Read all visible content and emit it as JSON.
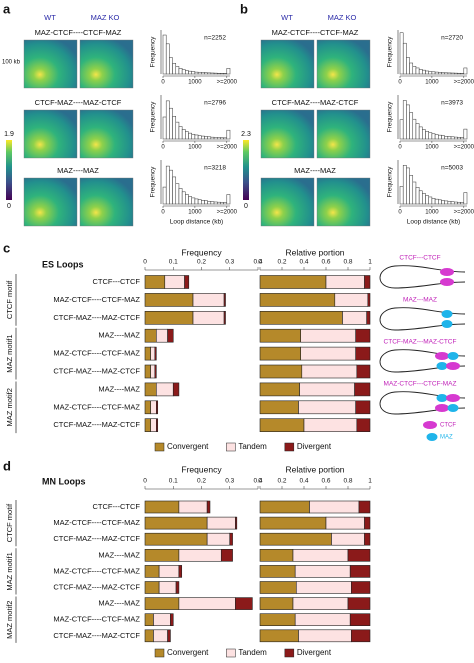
{
  "figure": {
    "panel_labels": [
      "a",
      "b",
      "c",
      "d"
    ],
    "hic": [
      {
        "wt": "WT",
        "ko": "MAZ KO",
        "scale": "100 kb",
        "colorbar": [
          1.9,
          0
        ],
        "rows": [
          "MAZ-CTCF----CTCF-MAZ",
          "CTCF-MAZ----MAZ-CTCF",
          "MAZ----MAZ"
        ]
      },
      {
        "wt": "WT",
        "ko": "MAZ KO",
        "colorbar": [
          2.3,
          0
        ],
        "rows": [
          "MAZ-CTCF----CTCF-MAZ",
          "CTCF-MAZ----MAZ-CTCF",
          "MAZ----MAZ"
        ]
      }
    ],
    "loops": [
      "ES Loops",
      "MN Loops"
    ],
    "motif_groups": [
      "CTCF motif",
      "MAZ motif1",
      "MAZ motif2"
    ],
    "diagrams": [
      "CTCF---CTCF",
      "MAZ---MAZ",
      "CTCF-MAZ---MAZ-CTCF",
      "MAZ-CTCF---CTCF-MAZ"
    ],
    "diagram_legend": [
      "CTCF",
      "MAZ"
    ]
  },
  "chart_data": [
    {
      "type": "histogram",
      "annotation": "n=2252",
      "ylabel": "Frequency",
      "bins": [
        0,
        100,
        200,
        300,
        400,
        500,
        600,
        700,
        800,
        900,
        1000,
        1100,
        1200,
        1300,
        1400,
        1500,
        1600,
        1700,
        1800,
        1900,
        2000,
        2100
      ],
      "counts": [
        620,
        480,
        260,
        170,
        120,
        90,
        70,
        55,
        45,
        40,
        30,
        28,
        25,
        20,
        18,
        16,
        14,
        12,
        10,
        10,
        90
      ],
      "ylim": [
        0,
        700
      ],
      "xlim": [
        0,
        2100
      ],
      "xticks": [
        0,
        1000,
        {
          "value": 2000,
          "label": ">=2000"
        }
      ]
    },
    {
      "type": "histogram",
      "annotation": "n=2796",
      "ylabel": "Frequency",
      "bins": [
        0,
        100,
        200,
        300,
        400,
        500,
        600,
        700,
        800,
        900,
        1000,
        1100,
        1200,
        1300,
        1400,
        1500,
        1600,
        1700,
        1800,
        1900,
        2000,
        2100
      ],
      "counts": [
        300,
        520,
        420,
        310,
        230,
        170,
        130,
        100,
        80,
        65,
        55,
        45,
        40,
        35,
        30,
        25,
        22,
        20,
        18,
        16,
        120
      ],
      "ylim": [
        0,
        600
      ],
      "xlim": [
        0,
        2100
      ],
      "xticks": [
        0,
        1000,
        {
          "value": 2000,
          "label": ">=2000"
        }
      ]
    },
    {
      "type": "histogram",
      "annotation": "n=3218",
      "ylabel": "Frequency",
      "xlabel": "Loop distance (kb)",
      "bins": [
        0,
        100,
        200,
        300,
        400,
        500,
        600,
        700,
        800,
        900,
        1000,
        1100,
        1200,
        1300,
        1400,
        1500,
        1600,
        1700,
        1800,
        1900,
        2000,
        2100
      ],
      "counts": [
        250,
        560,
        500,
        400,
        300,
        230,
        180,
        140,
        110,
        90,
        75,
        65,
        55,
        48,
        40,
        35,
        30,
        27,
        24,
        20,
        140
      ],
      "ylim": [
        0,
        650
      ],
      "xlim": [
        0,
        2100
      ],
      "xticks": [
        0,
        1000,
        {
          "value": 2000,
          "label": ">=2000"
        }
      ]
    },
    {
      "type": "histogram",
      "annotation": "n=2720",
      "ylabel": "Frequency",
      "bins": [
        0,
        100,
        200,
        300,
        400,
        500,
        600,
        700,
        800,
        900,
        1000,
        1100,
        1200,
        1300,
        1400,
        1500,
        1600,
        1700,
        1800,
        1900,
        2000,
        2100
      ],
      "counts": [
        750,
        560,
        300,
        200,
        140,
        110,
        85,
        70,
        55,
        45,
        40,
        35,
        30,
        25,
        22,
        20,
        18,
        16,
        14,
        12,
        110
      ],
      "ylim": [
        0,
        800
      ],
      "xlim": [
        0,
        2100
      ],
      "xticks": [
        0,
        1000,
        {
          "value": 2000,
          "label": ">=2000"
        }
      ]
    },
    {
      "type": "histogram",
      "annotation": "n=3973",
      "ylabel": "Frequency",
      "bins": [
        0,
        100,
        200,
        300,
        400,
        500,
        600,
        700,
        800,
        900,
        1000,
        1100,
        1200,
        1300,
        1400,
        1500,
        1600,
        1700,
        1800,
        1900,
        2000,
        2100
      ],
      "counts": [
        350,
        700,
        620,
        480,
        360,
        280,
        220,
        170,
        140,
        115,
        95,
        80,
        70,
        60,
        50,
        45,
        40,
        35,
        30,
        28,
        180
      ],
      "ylim": [
        0,
        800
      ],
      "xlim": [
        0,
        2100
      ],
      "xticks": [
        0,
        1000,
        {
          "value": 2000,
          "label": ">=2000"
        }
      ]
    },
    {
      "type": "histogram",
      "annotation": "n=5003",
      "ylabel": "Frequency",
      "xlabel": "Loop distance (kb)",
      "bins": [
        0,
        100,
        200,
        300,
        400,
        500,
        600,
        700,
        800,
        900,
        1000,
        1100,
        1200,
        1300,
        1400,
        1500,
        1600,
        1700,
        1800,
        1900,
        2000,
        2100
      ],
      "counts": [
        400,
        880,
        820,
        650,
        500,
        380,
        300,
        240,
        190,
        160,
        130,
        110,
        95,
        80,
        70,
        60,
        52,
        45,
        40,
        35,
        260
      ],
      "ylim": [
        0,
        1000
      ],
      "xlim": [
        0,
        2100
      ],
      "xticks": [
        0,
        1000,
        {
          "value": 2000,
          "label": ">=2000"
        }
      ]
    },
    {
      "type": "stacked-barh",
      "title": "Frequency",
      "categories": [
        "CTCF---CTCF",
        "MAZ-CTCF----CTCF-MAZ",
        "CTCF-MAZ----MAZ-CTCF",
        "MAZ----MAZ",
        "MAZ-CTCF----CTCF-MAZ",
        "CTCF-MAZ----MAZ-CTCF",
        "MAZ----MAZ",
        "MAZ-CTCF----CTCF-MAZ",
        "CTCF-MAZ----MAZ-CTCF"
      ],
      "series": [
        {
          "name": "Convergent",
          "color": "#b5892a",
          "values": [
            0.07,
            0.17,
            0.17,
            0.04,
            0.02,
            0.02,
            0.04,
            0.02,
            0.02
          ]
        },
        {
          "name": "Tandem",
          "color": "#fde2e2",
          "values": [
            0.07,
            0.11,
            0.11,
            0.04,
            0.015,
            0.015,
            0.06,
            0.02,
            0.02
          ]
        },
        {
          "name": "Divergent",
          "color": "#8b1a1a",
          "values": [
            0.015,
            0.005,
            0.005,
            0.02,
            0.005,
            0.005,
            0.02,
            0.005,
            0.005
          ]
        }
      ],
      "xlim": [
        0,
        0.4
      ],
      "xticks": [
        0,
        0.1,
        0.2,
        0.3,
        0.4
      ]
    },
    {
      "type": "stacked-barh",
      "title": "Relative portion",
      "series": [
        {
          "color": "#b5892a",
          "values": [
            0.6,
            0.68,
            0.75,
            0.37,
            0.37,
            0.38,
            0.36,
            0.35,
            0.4
          ]
        },
        {
          "color": "#fde2e2",
          "values": [
            0.35,
            0.3,
            0.22,
            0.5,
            0.5,
            0.5,
            0.5,
            0.52,
            0.48
          ]
        },
        {
          "color": "#8b1a1a",
          "values": [
            0.05,
            0.02,
            0.03,
            0.13,
            0.13,
            0.12,
            0.14,
            0.13,
            0.12
          ]
        }
      ],
      "xlim": [
        0,
        1
      ],
      "xticks": [
        0,
        0.2,
        0.4,
        0.6,
        0.8,
        1
      ]
    },
    {
      "type": "stacked-barh",
      "title": "Frequency",
      "categories": [
        "CTCF---CTCF",
        "MAZ-CTCF----CTCF-MAZ",
        "CTCF-MAZ----MAZ-CTCF",
        "MAZ----MAZ",
        "MAZ-CTCF----CTCF-MAZ",
        "CTCF-MAZ----MAZ-CTCF",
        "MAZ----MAZ",
        "MAZ-CTCF----CTCF-MAZ",
        "CTCF-MAZ----MAZ-CTCF"
      ],
      "series": [
        {
          "name": "Convergent",
          "color": "#b5892a",
          "values": [
            0.12,
            0.22,
            0.22,
            0.12,
            0.05,
            0.05,
            0.12,
            0.03,
            0.03
          ]
        },
        {
          "name": "Tandem",
          "color": "#fde2e2",
          "values": [
            0.1,
            0.1,
            0.08,
            0.15,
            0.07,
            0.06,
            0.2,
            0.06,
            0.05
          ]
        },
        {
          "name": "Divergent",
          "color": "#8b1a1a",
          "values": [
            0.01,
            0.005,
            0.01,
            0.04,
            0.01,
            0.01,
            0.06,
            0.01,
            0.01
          ]
        }
      ],
      "xlim": [
        0,
        0.4
      ],
      "xticks": [
        0,
        0.1,
        0.2,
        0.3,
        0.4
      ]
    },
    {
      "type": "stacked-barh",
      "title": "Relative portion",
      "series": [
        {
          "color": "#b5892a",
          "values": [
            0.45,
            0.6,
            0.65,
            0.3,
            0.32,
            0.33,
            0.3,
            0.32,
            0.35
          ]
        },
        {
          "color": "#fde2e2",
          "values": [
            0.45,
            0.35,
            0.3,
            0.5,
            0.5,
            0.5,
            0.5,
            0.5,
            0.48
          ]
        },
        {
          "color": "#8b1a1a",
          "values": [
            0.1,
            0.05,
            0.05,
            0.2,
            0.18,
            0.17,
            0.2,
            0.18,
            0.17
          ]
        }
      ],
      "xlim": [
        0,
        1
      ],
      "xticks": [
        0,
        0.2,
        0.4,
        0.6,
        0.8,
        1
      ]
    }
  ]
}
